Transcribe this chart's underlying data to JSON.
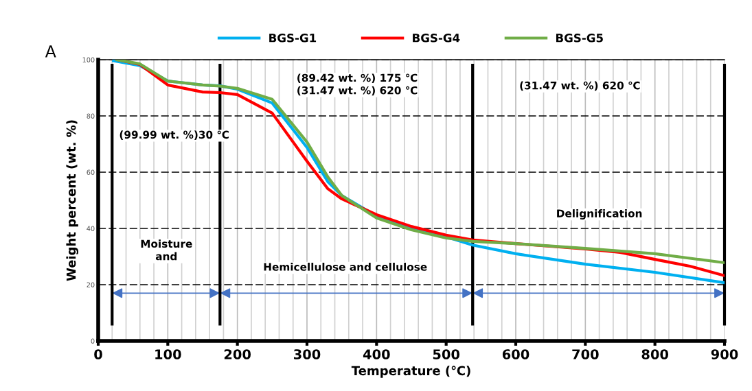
{
  "chart_data": {
    "type": "line",
    "xlabel": "Temperature (℃)",
    "ylabel": "Weight percent (wt. %)",
    "xlim": [
      0,
      900
    ],
    "xticks": [
      0,
      100,
      200,
      300,
      400,
      500,
      600,
      700,
      800,
      900
    ],
    "ylim": [
      0,
      100
    ],
    "yticks": [
      0,
      20,
      40,
      60,
      80,
      100
    ],
    "grid": true,
    "legend": "top",
    "line_style": "solid",
    "marker": "none",
    "series": [
      {
        "name": "BGS-G1",
        "color": "#00b0f0",
        "x": [
          22,
          60,
          100,
          150,
          175,
          200,
          250,
          300,
          330,
          350,
          400,
          450,
          500,
          538,
          600,
          700,
          800,
          900
        ],
        "values": [
          99.6,
          97.9,
          92.4,
          91,
          90.7,
          89.5,
          84.6,
          68.8,
          56.6,
          51.7,
          44.4,
          40.2,
          37,
          34.1,
          31,
          27.3,
          24.4,
          20.7
        ]
      },
      {
        "name": "BGS-G4",
        "color": "#ff0000",
        "x": [
          27,
          60,
          100,
          150,
          175,
          200,
          250,
          300,
          330,
          350,
          400,
          450,
          500,
          538,
          600,
          700,
          750,
          800,
          850,
          900
        ],
        "values": [
          100,
          98.3,
          91,
          88.5,
          88.3,
          87.6,
          81,
          63.9,
          54.1,
          50.5,
          44.9,
          40.7,
          37.6,
          35.9,
          34.6,
          32.7,
          31.5,
          29,
          26.6,
          23.2
        ]
      },
      {
        "name": "BGS-G5",
        "color": "#70ad47",
        "x": [
          27,
          60,
          100,
          150,
          175,
          200,
          250,
          300,
          330,
          350,
          400,
          450,
          500,
          538,
          600,
          700,
          800,
          900
        ],
        "values": [
          100,
          98.5,
          92.4,
          91,
          90.6,
          89.8,
          85.9,
          70.7,
          58.3,
          51.7,
          43.7,
          39.5,
          36.6,
          35.4,
          34.6,
          32.9,
          31,
          27.8
        ]
      }
    ],
    "ref_lines": [
      {
        "axis": "x",
        "value": 20,
        "color": "#000000"
      },
      {
        "axis": "x",
        "value": 175,
        "color": "#000000"
      },
      {
        "axis": "x",
        "value": 538,
        "color": "#000000"
      },
      {
        "axis": "x",
        "value": 900,
        "color": "#000000"
      }
    ],
    "annotations": [
      "A",
      "(99.99 wt. %)30 ℃",
      "(89.42 wt. %) 175 ℃\n(31.47 wt. %) 620 ℃",
      "(31.47 wt. %) 620 ℃",
      "Moisture\nand",
      "Hemicellulose and cellulose",
      "Delignification"
    ]
  }
}
